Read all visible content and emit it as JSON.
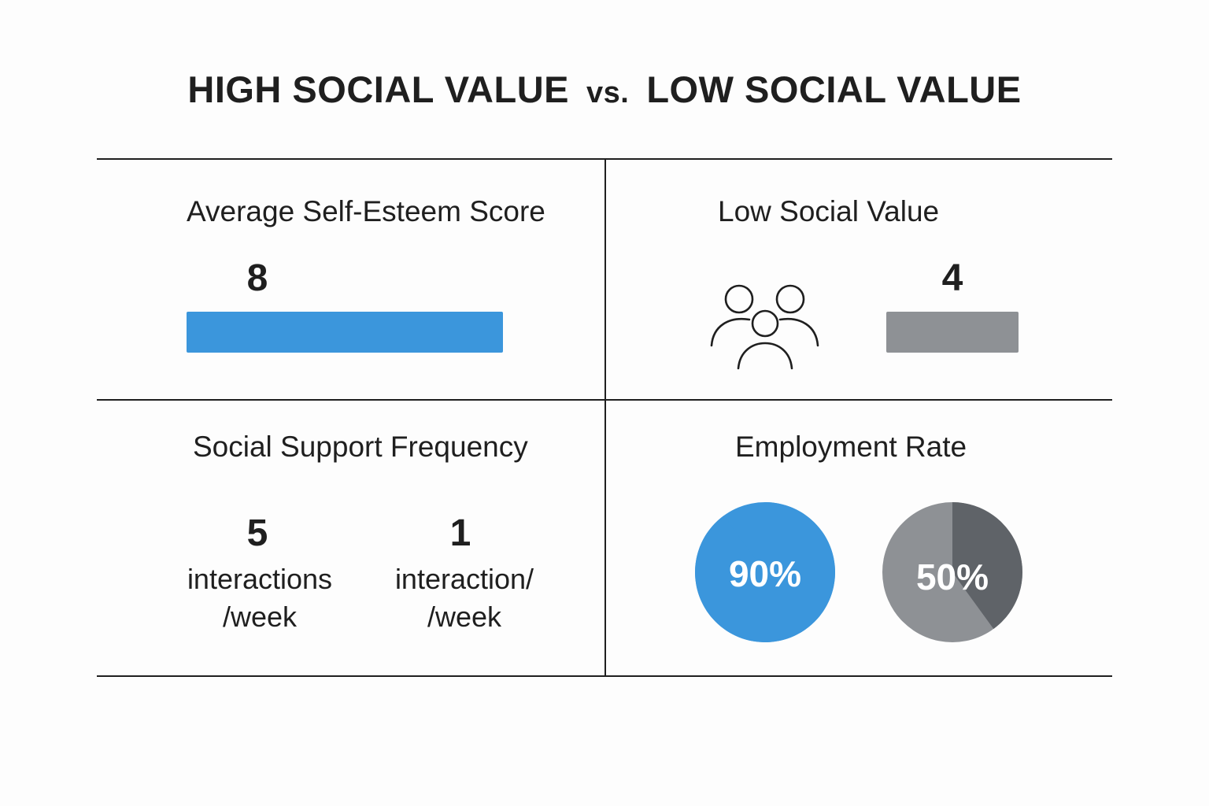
{
  "title": {
    "left": "HIGH SOCIAL VALUE",
    "vs": "vs.",
    "right": "LOW SOCIAL VALUE"
  },
  "colors": {
    "high": "#3b96dc",
    "low": "#8e9195",
    "low_dark": "#5f6368",
    "ink": "#1f1f1f"
  },
  "icons": {
    "group": "group-of-people-icon"
  },
  "chart_data": [
    {
      "type": "bar",
      "title": "Average Self-Esteem Score",
      "categories": [
        "",
        ""
      ],
      "values": [
        8,
        4
      ],
      "value_labels": [
        "8",
        "4"
      ],
      "ylim": [
        0,
        10
      ]
    },
    {
      "type": "table",
      "title": "Social Support Frequency",
      "values": [
        5,
        1
      ],
      "value_labels": [
        "5",
        "1"
      ],
      "unit_lines": [
        [
          "interactions",
          "/week"
        ],
        [
          "interaction/",
          "/week"
        ]
      ]
    },
    {
      "type": "pie",
      "title": "Employment Rate",
      "values": [
        90,
        50
      ],
      "value_labels": [
        "90%",
        "50%"
      ]
    }
  ],
  "panels": {
    "top_right_label": "Low Social Value"
  }
}
